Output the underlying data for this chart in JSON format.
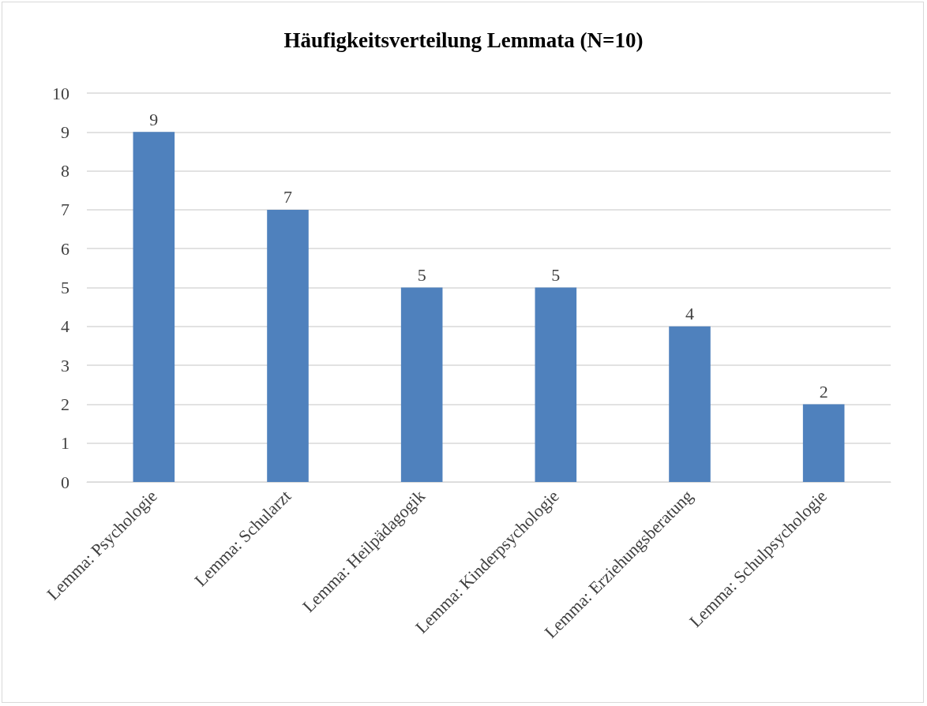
{
  "chart_data": {
    "type": "bar",
    "title": "Häufigkeitsverteilung Lemmata (N=10)",
    "categories": [
      "Lemma: Psychologie",
      "Lemma: Schularzt",
      "Lemma: Heilpädagogik",
      "Lemma: Kinderpsychologie",
      "Lemma: Erziehungsberatung",
      "Lemma: Schulpsychologie"
    ],
    "values": [
      9,
      7,
      5,
      5,
      4,
      2
    ],
    "color": "#4f81bd",
    "ylim": [
      0,
      10
    ],
    "yticks": [
      0,
      1,
      2,
      3,
      4,
      5,
      6,
      7,
      8,
      9,
      10
    ],
    "grid": "y",
    "data_labels": true
  }
}
